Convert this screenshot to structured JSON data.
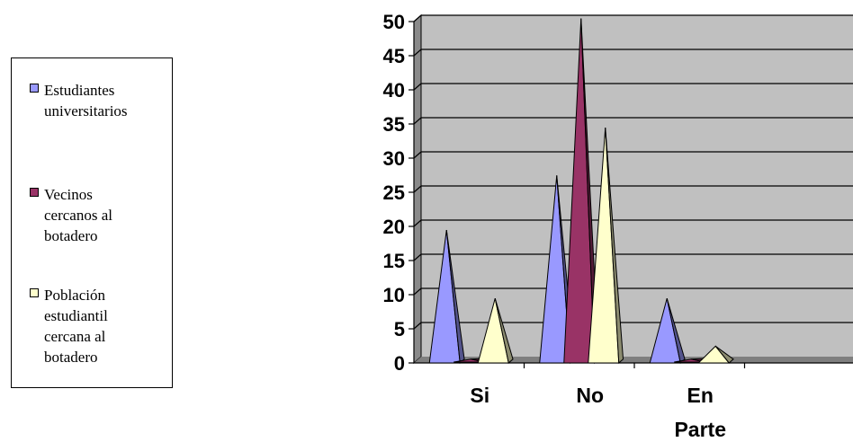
{
  "chart_data": {
    "type": "bar",
    "bar_shape": "cone-3d",
    "categories": [
      "Si",
      "No",
      "En Parte"
    ],
    "category_lines": [
      [
        "Si"
      ],
      [
        "No"
      ],
      [
        "En",
        "Parte"
      ]
    ],
    "series": [
      {
        "name": "Estudiantes universitarios",
        "name_lines": [
          "Estudiantes",
          "universitarios"
        ],
        "color": "#9999FF",
        "values": [
          19,
          27,
          9
        ]
      },
      {
        "name": "Vecinos cercanos al botadero",
        "name_lines": [
          "Vecinos",
          "cercanos al",
          "botadero"
        ],
        "color": "#993366",
        "values": [
          0,
          50,
          0
        ]
      },
      {
        "name": "Población estudiantil cercana al botadero",
        "name_lines": [
          "Población",
          "estudiantil",
          "cercana al",
          "botadero"
        ],
        "color": "#FFFFCC",
        "values": [
          9,
          34,
          2
        ]
      }
    ],
    "ylim": [
      0,
      50
    ],
    "yticks": [
      "0",
      "5",
      "10",
      "15",
      "20",
      "25",
      "30",
      "35",
      "40",
      "45",
      "50"
    ],
    "title": "",
    "xlabel": "",
    "ylabel": "",
    "grid": true,
    "legend_position": "left",
    "plot_background": "#C0C0C0"
  }
}
